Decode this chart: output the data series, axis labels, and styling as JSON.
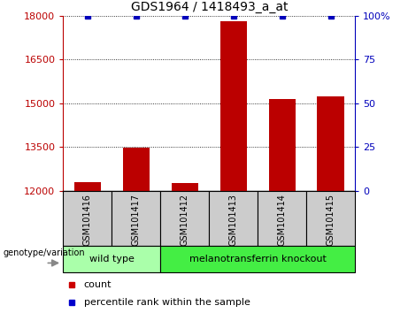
{
  "title": "GDS1964 / 1418493_a_at",
  "samples": [
    "GSM101416",
    "GSM101417",
    "GSM101412",
    "GSM101413",
    "GSM101414",
    "GSM101415"
  ],
  "counts": [
    12300,
    13480,
    12270,
    17820,
    15150,
    15250
  ],
  "percentile_ranks": [
    100,
    100,
    100,
    100,
    100,
    100
  ],
  "ylim_left": [
    12000,
    18000
  ],
  "ylim_right": [
    0,
    100
  ],
  "yticks_left": [
    12000,
    13500,
    15000,
    16500,
    18000
  ],
  "yticks_right": [
    0,
    25,
    50,
    75,
    100
  ],
  "bar_color": "#bb0000",
  "dot_color": "#0000bb",
  "groups": [
    {
      "label": "wild type",
      "indices": [
        0,
        1
      ],
      "color": "#aaffaa"
    },
    {
      "label": "melanotransferrin knockout",
      "indices": [
        2,
        3,
        4,
        5
      ],
      "color": "#44ee44"
    }
  ],
  "group_row_color": "#cccccc",
  "legend_count_color": "#cc0000",
  "legend_pct_color": "#0000cc",
  "genotype_label": "genotype/variation",
  "legend_count": "count",
  "legend_pct": "percentile rank within the sample",
  "bar_width": 0.55,
  "pct_marker_size": 5
}
